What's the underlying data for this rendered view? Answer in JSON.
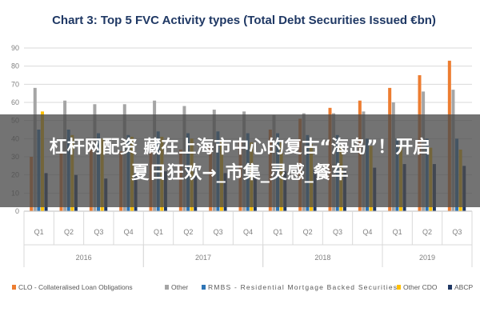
{
  "chart_data": {
    "type": "bar",
    "title": "Chart 3: Top 5 FVC Activity types (Total Debt Securities Issued €bn)",
    "ylim": [
      0,
      90
    ],
    "yticks": [
      0,
      10,
      20,
      30,
      40,
      50,
      60,
      70,
      80,
      90
    ],
    "grid": true,
    "legend_position": "bottom",
    "categories": [
      "Q1",
      "Q2",
      "Q3",
      "Q4",
      "Q1",
      "Q2",
      "Q3",
      "Q4",
      "Q1",
      "Q2",
      "Q3",
      "Q4",
      "Q1",
      "Q2",
      "Q3"
    ],
    "year_groups": [
      {
        "label": "2016",
        "start": 0,
        "end": 3
      },
      {
        "label": "2017",
        "start": 4,
        "end": 7
      },
      {
        "label": "2018",
        "start": 8,
        "end": 11
      },
      {
        "label": "2019",
        "start": 12,
        "end": 14
      }
    ],
    "series": [
      {
        "name": "CLO - Collateralised Loan Obligations",
        "color": "#ed7d31",
        "values": [
          30,
          32,
          34,
          33,
          33,
          34,
          36,
          38,
          45,
          51,
          57,
          61,
          68,
          75,
          83
        ]
      },
      {
        "name": "Other",
        "color": "#a5a5a5",
        "values": [
          68,
          61,
          59,
          59,
          61,
          58,
          56,
          55,
          53,
          54,
          54,
          55,
          60,
          66,
          67
        ]
      },
      {
        "name": "RMBS - Residential Mortgage Backed Securities",
        "color": "#2e75b6",
        "values": [
          45,
          45,
          43,
          42,
          44,
          43,
          44,
          43,
          43,
          42,
          42,
          40,
          40,
          40,
          40
        ]
      },
      {
        "name": "Other CDO",
        "color": "#ffc000",
        "values": [
          55,
          42,
          40,
          41,
          41,
          40,
          39,
          38,
          38,
          37,
          36,
          36,
          36,
          35,
          34
        ]
      },
      {
        "name": "ABCP",
        "color": "#203864",
        "values": [
          21,
          20,
          18,
          21,
          22,
          22,
          21,
          22,
          22,
          23,
          23,
          24,
          26,
          26,
          25
        ]
      }
    ]
  },
  "overlay": {
    "line1": "杠杆网配资 藏在上海市中心的复古“海岛”！开启",
    "line2": "夏日狂欢→_市集_灵感_餐车"
  }
}
